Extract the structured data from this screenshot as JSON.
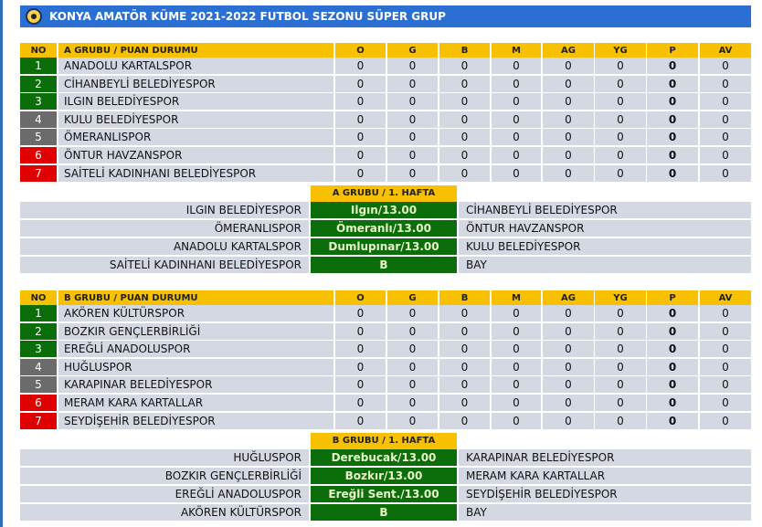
{
  "title": "KONYA AMATÖR KÜME 2021-2022 FUTBOL SEZONU SÜPER GRUP",
  "colors": {
    "green": "#0b6e0b",
    "grey": "#6b6b6b",
    "red": "#e00000",
    "header": "#f7c000"
  },
  "columns": [
    "O",
    "G",
    "B",
    "M",
    "AG",
    "YG",
    "P",
    "AV"
  ],
  "groups": [
    {
      "no_label": "NO",
      "standings_title": "A GRUBU / PUAN DURUMU",
      "teams": [
        {
          "no": "1",
          "status": "green",
          "name": "ANADOLU KARTALSPOR",
          "stats": [
            "0",
            "0",
            "0",
            "0",
            "0",
            "0",
            "0",
            "0"
          ]
        },
        {
          "no": "2",
          "status": "green",
          "name": "CİHANBEYLİ BELEDİYESPOR",
          "stats": [
            "0",
            "0",
            "0",
            "0",
            "0",
            "0",
            "0",
            "0"
          ]
        },
        {
          "no": "3",
          "status": "green",
          "name": "ILGIN BELEDİYESPOR",
          "stats": [
            "0",
            "0",
            "0",
            "0",
            "0",
            "0",
            "0",
            "0"
          ]
        },
        {
          "no": "4",
          "status": "grey",
          "name": "KULU BELEDİYESPOR",
          "stats": [
            "0",
            "0",
            "0",
            "0",
            "0",
            "0",
            "0",
            "0"
          ]
        },
        {
          "no": "5",
          "status": "grey",
          "name": "ÖMERANLISPOR",
          "stats": [
            "0",
            "0",
            "0",
            "0",
            "0",
            "0",
            "0",
            "0"
          ]
        },
        {
          "no": "6",
          "status": "red",
          "name": "ÖNTUR HAVZANSPOR",
          "stats": [
            "0",
            "0",
            "0",
            "0",
            "0",
            "0",
            "0",
            "0"
          ]
        },
        {
          "no": "7",
          "status": "red",
          "name": "SAİTELİ KADINHANI BELEDİYESPOR",
          "stats": [
            "0",
            "0",
            "0",
            "0",
            "0",
            "0",
            "0",
            "0"
          ]
        }
      ],
      "fixture_title": "A GRUBU / 1. HAFTA",
      "fixtures": [
        {
          "home": "ILGIN BELEDİYESPOR",
          "venue": "Ilgın/13.00",
          "away": "CİHANBEYLİ BELEDİYESPOR"
        },
        {
          "home": "ÖMERANLISPOR",
          "venue": "Ömeranlı/13.00",
          "away": "ÖNTUR HAVZANSPOR"
        },
        {
          "home": "ANADOLU KARTALSPOR",
          "venue": "Dumlupınar/13.00",
          "away": "KULU BELEDİYESPOR"
        },
        {
          "home": "SAİTELİ KADINHANI BELEDİYESPOR",
          "venue": "B",
          "away": "BAY"
        }
      ]
    },
    {
      "no_label": "NO",
      "standings_title": "B GRUBU / PUAN DURUMU",
      "teams": [
        {
          "no": "1",
          "status": "green",
          "name": "AKÖREN KÜLTÜRSPOR",
          "stats": [
            "0",
            "0",
            "0",
            "0",
            "0",
            "0",
            "0",
            "0"
          ]
        },
        {
          "no": "2",
          "status": "green",
          "name": "BOZKIR GENÇLERBİRLİĞİ",
          "stats": [
            "0",
            "0",
            "0",
            "0",
            "0",
            "0",
            "0",
            "0"
          ]
        },
        {
          "no": "3",
          "status": "green",
          "name": "EREĞLİ ANADOLUSPOR",
          "stats": [
            "0",
            "0",
            "0",
            "0",
            "0",
            "0",
            "0",
            "0"
          ]
        },
        {
          "no": "4",
          "status": "grey",
          "name": "HUĞLUSPOR",
          "stats": [
            "0",
            "0",
            "0",
            "0",
            "0",
            "0",
            "0",
            "0"
          ]
        },
        {
          "no": "5",
          "status": "grey",
          "name": "KARAPINAR BELEDİYESPOR",
          "stats": [
            "0",
            "0",
            "0",
            "0",
            "0",
            "0",
            "0",
            "0"
          ]
        },
        {
          "no": "6",
          "status": "red",
          "name": "MERAM KARA KARTALLAR",
          "stats": [
            "0",
            "0",
            "0",
            "0",
            "0",
            "0",
            "0",
            "0"
          ]
        },
        {
          "no": "7",
          "status": "red",
          "name": "SEYDİŞEHİR BELEDİYESPOR",
          "stats": [
            "0",
            "0",
            "0",
            "0",
            "0",
            "0",
            "0",
            "0"
          ]
        }
      ],
      "fixture_title": "B GRUBU / 1. HAFTA",
      "fixtures": [
        {
          "home": "HUĞLUSPOR",
          "venue": "Derebucak/13.00",
          "away": "KARAPINAR BELEDİYESPOR"
        },
        {
          "home": "BOZKIR GENÇLERBİRLİĞİ",
          "venue": "Bozkır/13.00",
          "away": "MERAM KARA KARTALLAR"
        },
        {
          "home": "EREĞLİ ANADOLUSPOR",
          "venue": "Ereğli Sent./13.00",
          "away": "SEYDİŞEHİR BELEDİYESPOR"
        },
        {
          "home": "AKÖREN KÜLTÜRSPOR",
          "venue": "B",
          "away": "BAY"
        }
      ]
    }
  ]
}
